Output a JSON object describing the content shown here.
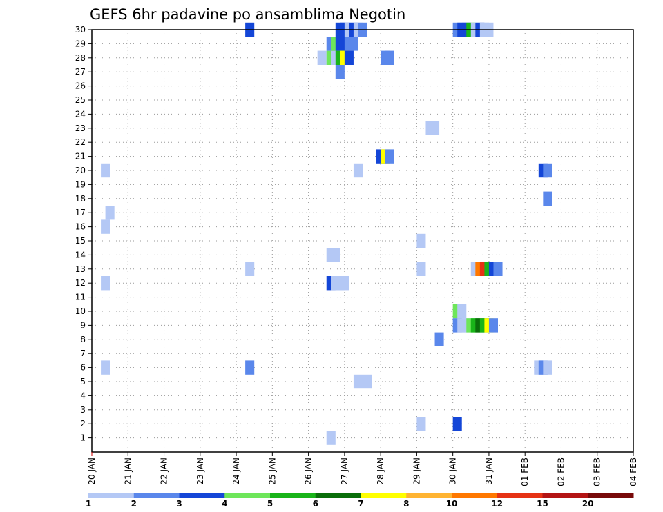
{
  "chart_data": {
    "type": "heatmap",
    "title": "GEFS 6hr padavine po ansamblima Negotin",
    "xlabel": "",
    "ylabel": "",
    "x_tick_labels": [
      "20 JAN",
      "21 JAN",
      "22 JAN",
      "23 JAN",
      "24 JAN",
      "25 JAN",
      "26 JAN",
      "27 JAN",
      "28 JAN",
      "29 JAN",
      "30 JAN",
      "31 JAN",
      "01 FEB",
      "02 FEB",
      "03 FEB",
      "04 FEB"
    ],
    "x_range": [
      0,
      60
    ],
    "x_unit": "6-hour steps starting 20 JAN 00Z",
    "y_tick_labels": [
      "1",
      "2",
      "3",
      "4",
      "5",
      "6",
      "7",
      "8",
      "9",
      "10",
      "11",
      "12",
      "13",
      "14",
      "15",
      "16",
      "17",
      "18",
      "19",
      "20",
      "21",
      "22",
      "23",
      "24",
      "25",
      "26",
      "27",
      "28",
      "29",
      "30"
    ],
    "y_range": [
      0,
      30
    ],
    "grid": true,
    "colorbar": {
      "levels": [
        "1",
        "2",
        "3",
        "4",
        "5",
        "6",
        "7",
        "8",
        "10",
        "12",
        "15",
        "20"
      ],
      "colors": [
        "#b4c8f5",
        "#5a87eb",
        "#1446d7",
        "#6ee65a",
        "#19b419",
        "#0a6e0a",
        "#ffff00",
        "#ffb432",
        "#ff7800",
        "#e63214",
        "#b41414",
        "#780a0a"
      ]
    },
    "cells": [
      {
        "t": 1.5,
        "member": 20,
        "class": 0
      },
      {
        "t": 1.5,
        "member": 16,
        "class": 0
      },
      {
        "t": 2,
        "member": 17,
        "class": 0
      },
      {
        "t": 1.5,
        "member": 12,
        "class": 0
      },
      {
        "t": 1.5,
        "member": 6,
        "class": 0
      },
      {
        "t": 17.5,
        "member": 30,
        "class": 2
      },
      {
        "t": 17.5,
        "member": 13,
        "class": 0
      },
      {
        "t": 17.5,
        "member": 6,
        "class": 1
      },
      {
        "t": 25.5,
        "member": 28,
        "class": 0
      },
      {
        "t": 26.5,
        "member": 28,
        "class": 3
      },
      {
        "t": 27,
        "member": 28,
        "class": 0
      },
      {
        "t": 26.5,
        "member": 29,
        "class": 1
      },
      {
        "t": 27,
        "member": 29,
        "class": 3
      },
      {
        "t": 27.5,
        "member": 30,
        "class": 2
      },
      {
        "t": 28,
        "member": 30,
        "class": 2
      },
      {
        "t": 28.5,
        "member": 30,
        "class": 0
      },
      {
        "t": 29,
        "member": 30,
        "class": 2
      },
      {
        "t": 29.5,
        "member": 30,
        "class": 0
      },
      {
        "t": 30,
        "member": 30,
        "class": 1
      },
      {
        "t": 27.5,
        "member": 29,
        "class": 2
      },
      {
        "t": 28,
        "member": 29,
        "class": 2
      },
      {
        "t": 28.5,
        "member": 29,
        "class": 1
      },
      {
        "t": 29,
        "member": 29,
        "class": 1
      },
      {
        "t": 27.5,
        "member": 28,
        "class": 4
      },
      {
        "t": 28,
        "member": 28,
        "class": 6
      },
      {
        "t": 28.5,
        "member": 28,
        "class": 2
      },
      {
        "t": 27.5,
        "member": 27,
        "class": 1
      },
      {
        "t": 26.5,
        "member": 14,
        "class": 0
      },
      {
        "t": 27,
        "member": 14,
        "class": 0
      },
      {
        "t": 26.5,
        "member": 12,
        "class": 2
      },
      {
        "t": 27,
        "member": 12,
        "class": 0
      },
      {
        "t": 27.5,
        "member": 12,
        "class": 0
      },
      {
        "t": 28,
        "member": 12,
        "class": 0
      },
      {
        "t": 26.5,
        "member": 1,
        "class": 0
      },
      {
        "t": 29.5,
        "member": 20,
        "class": 0
      },
      {
        "t": 29.5,
        "member": 5,
        "class": 0
      },
      {
        "t": 30.5,
        "member": 5,
        "class": 0
      },
      {
        "t": 32.5,
        "member": 28,
        "class": 1
      },
      {
        "t": 33,
        "member": 28,
        "class": 1
      },
      {
        "t": 32,
        "member": 21,
        "class": 2
      },
      {
        "t": 32.5,
        "member": 21,
        "class": 6
      },
      {
        "t": 33,
        "member": 21,
        "class": 1
      },
      {
        "t": 36.5,
        "member": 15,
        "class": 0
      },
      {
        "t": 36.5,
        "member": 13,
        "class": 0
      },
      {
        "t": 36.5,
        "member": 2,
        "class": 0
      },
      {
        "t": 37.5,
        "member": 23,
        "class": 0
      },
      {
        "t": 38,
        "member": 23,
        "class": 0
      },
      {
        "t": 38.5,
        "member": 8,
        "class": 1
      },
      {
        "t": 40.5,
        "member": 30,
        "class": 1
      },
      {
        "t": 41,
        "member": 30,
        "class": 2
      },
      {
        "t": 41.5,
        "member": 30,
        "class": 2
      },
      {
        "t": 42,
        "member": 30,
        "class": 4
      },
      {
        "t": 42.5,
        "member": 30,
        "class": 0
      },
      {
        "t": 43,
        "member": 30,
        "class": 2
      },
      {
        "t": 43.5,
        "member": 30,
        "class": 0
      },
      {
        "t": 44,
        "member": 30,
        "class": 0
      },
      {
        "t": 40.5,
        "member": 10,
        "class": 3
      },
      {
        "t": 41,
        "member": 10,
        "class": 0
      },
      {
        "t": 40.5,
        "member": 9,
        "class": 1
      },
      {
        "t": 41,
        "member": 9,
        "class": 0
      },
      {
        "t": 41.5,
        "member": 9,
        "class": 0
      },
      {
        "t": 42,
        "member": 9,
        "class": 3
      },
      {
        "t": 42.5,
        "member": 9,
        "class": 4
      },
      {
        "t": 43,
        "member": 9,
        "class": 5
      },
      {
        "t": 43.5,
        "member": 9,
        "class": 4
      },
      {
        "t": 44,
        "member": 9,
        "class": 6
      },
      {
        "t": 44.5,
        "member": 9,
        "class": 1
      },
      {
        "t": 40.5,
        "member": 2,
        "class": 2
      },
      {
        "t": 42.5,
        "member": 13,
        "class": 0
      },
      {
        "t": 43,
        "member": 13,
        "class": 8
      },
      {
        "t": 43.5,
        "member": 13,
        "class": 9
      },
      {
        "t": 44,
        "member": 13,
        "class": 4
      },
      {
        "t": 44.5,
        "member": 13,
        "class": 2
      },
      {
        "t": 45,
        "member": 13,
        "class": 1
      },
      {
        "t": 49.5,
        "member": 6,
        "class": 0
      },
      {
        "t": 50,
        "member": 6,
        "class": 1
      },
      {
        "t": 50.5,
        "member": 6,
        "class": 0
      },
      {
        "t": 50,
        "member": 20,
        "class": 2
      },
      {
        "t": 50.5,
        "member": 20,
        "class": 1
      },
      {
        "t": 50.5,
        "member": 18,
        "class": 1
      }
    ]
  }
}
